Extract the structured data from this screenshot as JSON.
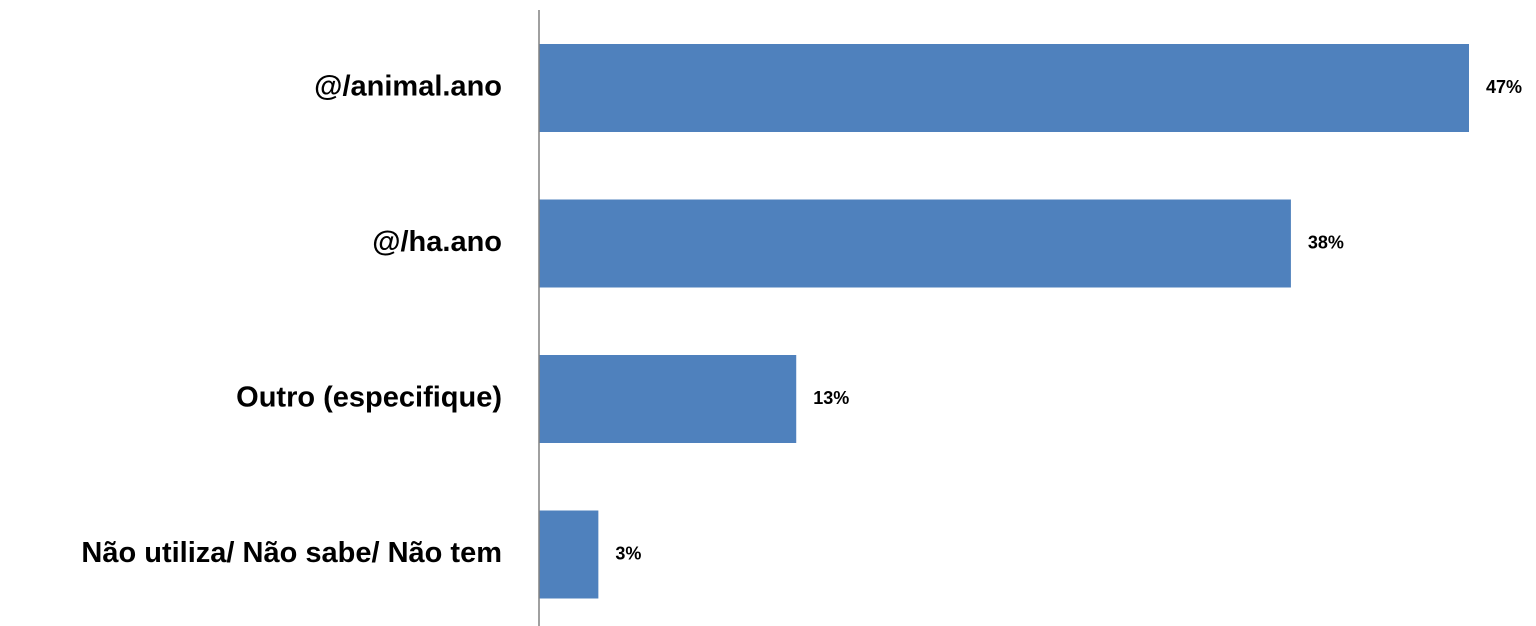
{
  "chart_data": {
    "type": "bar",
    "orientation": "horizontal",
    "title": "",
    "xlabel": "",
    "ylabel": "",
    "categories": [
      "@/animal.ano",
      "@/ha.ano",
      "Outro (especifique)",
      "Não utiliza/ Não sabe/ Não tem"
    ],
    "values": [
      47,
      38,
      13,
      3
    ],
    "value_labels": [
      "47%",
      "38%",
      "13%",
      "3%"
    ],
    "unit": "%",
    "xlim": [
      0,
      47
    ],
    "grid": false,
    "legend": "none",
    "bar_color": "#4F81BD"
  }
}
